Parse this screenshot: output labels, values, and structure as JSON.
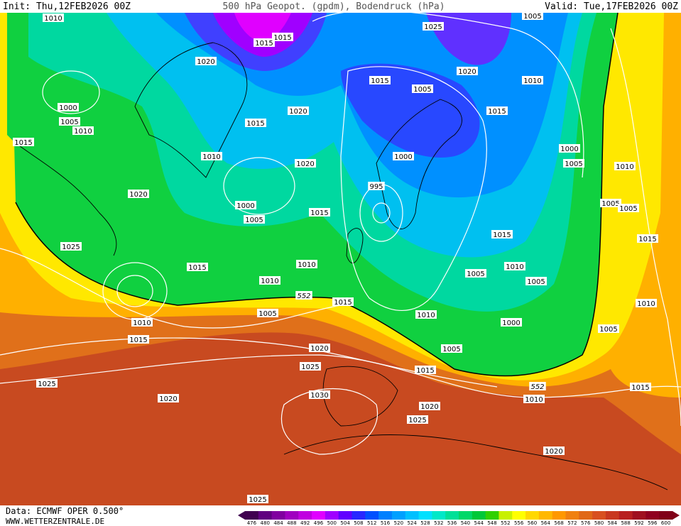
{
  "header": {
    "init": "Init: Thu,12FEB2026 00Z",
    "title": "500 hPa Geopot. (gpdm), Bodendruck (hPa)",
    "valid": "Valid: Tue,17FEB2026 00Z"
  },
  "footer": {
    "source": "Data: ECMWF OPER 0.500°",
    "site": "WWW.WETTERZENTRALE.DE"
  },
  "pressure_labels": [
    1010,
    1015,
    1015,
    1020,
    1005,
    1025,
    1020,
    1010,
    1015,
    1005,
    1000,
    1005,
    1010,
    1015,
    1020,
    1015,
    1015,
    1000,
    1010,
    1020,
    1000,
    1005,
    1010,
    995,
    1020,
    1000,
    1005,
    1015,
    1005,
    1005,
    1015,
    1015,
    1025,
    1015,
    1010,
    1010,
    1005,
    1005,
    1010,
    1015,
    1010,
    1005,
    1010,
    1000,
    1010,
    1015,
    1005,
    1005,
    1020,
    1025,
    1015,
    1025,
    1010,
    1015,
    1030,
    1020,
    1020,
    1025,
    1020,
    1025
  ],
  "height_labels": [
    552,
    552
  ],
  "legend": {
    "values": [
      476,
      480,
      484,
      488,
      492,
      496,
      500,
      504,
      508,
      512,
      516,
      520,
      524,
      528,
      532,
      536,
      540,
      544,
      548,
      552,
      556,
      560,
      564,
      568,
      572,
      576,
      580,
      584,
      588,
      592,
      596,
      600
    ],
    "colors": [
      "#400050",
      "#600080",
      "#8000a0",
      "#a000c0",
      "#c000e0",
      "#e000ff",
      "#a000ff",
      "#6000ff",
      "#2828ff",
      "#0050ff",
      "#0080ff",
      "#00a0ff",
      "#00c0ff",
      "#00e0ff",
      "#00e8c8",
      "#00e098",
      "#00d868",
      "#00c838",
      "#30d000",
      "#c8f000",
      "#ffff00",
      "#ffd800",
      "#ffb800",
      "#ff9800",
      "#f08010",
      "#e06818",
      "#d85020",
      "#c83820",
      "#b82020",
      "#a01020",
      "#900020",
      "#800018"
    ]
  }
}
